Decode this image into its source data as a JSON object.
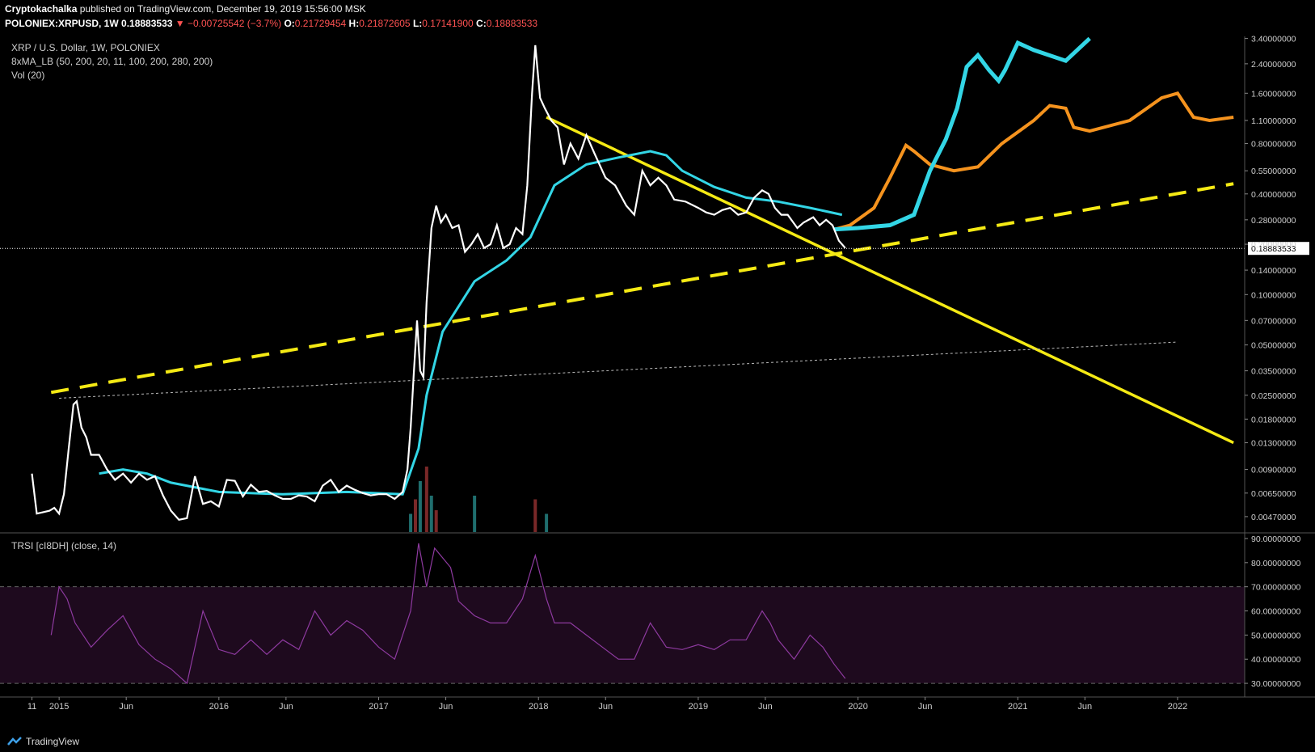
{
  "header": {
    "author": "Cryptokachalka",
    "published": "published on TradingView.com, December 19, 2019 15:56:00 MSK",
    "symbol": "POLONIEX:XRPUSD, 1W",
    "last": "0.18883533",
    "change": "▼ −0.00725542 (−3.7%)",
    "open_label": "O:",
    "open": "0.21729454",
    "high_label": "H:",
    "high": "0.21872605",
    "low_label": "L:",
    "low": "0.17141900",
    "close_label": "C:",
    "close": "0.18883533"
  },
  "legend": {
    "title": "XRP / U.S. Dollar, 1W, POLONIEX",
    "ma": "8xMA_LB (50, 200, 20, 11, 100, 200, 280, 200)",
    "vol": "Vol (20)",
    "rsi": "TRSI [cI8DH] (close, 14)"
  },
  "footer": {
    "brand": "TradingView"
  },
  "colors": {
    "price": "#ffffff",
    "ma_green": "#1e9e1e",
    "ma_cyan": "#33d6e6",
    "ma_purple": "#a02cc0",
    "ma_olive": "#6e9e40",
    "ma_orange": "#f5931e",
    "trend_yellow": "#f5ea14",
    "rsi": "#8e3aa0",
    "rsi_band": "#1e0a1e",
    "vol_up": "#1f6e6e",
    "vol_down": "#7a2828",
    "price_tag_bg": "#ffffff",
    "text": "#cfcfcf"
  },
  "chart_data": {
    "type": "line",
    "title": "XRP / U.S. Dollar, 1W, POLONIEX",
    "scale": "log",
    "y_ticks": [
      "3.40000000",
      "2.40000000",
      "1.60000000",
      "1.10000000",
      "0.80000000",
      "0.55000000",
      "0.40000000",
      "0.28000000",
      "0.20000000",
      "0.14000000",
      "0.10000000",
      "0.07000000",
      "0.05000000",
      "0.03500000",
      "0.02500000",
      "0.01800000",
      "0.01300000",
      "0.00900000",
      "0.00650000",
      "0.00470000"
    ],
    "y_tick_values": [
      3.4,
      2.4,
      1.6,
      1.1,
      0.8,
      0.55,
      0.4,
      0.28,
      0.2,
      0.14,
      0.1,
      0.07,
      0.05,
      0.035,
      0.025,
      0.018,
      0.013,
      0.009,
      0.0065,
      0.0047
    ],
    "last_price_label": "0.18883533",
    "last_price": 0.18883533,
    "x_ticks": [
      "11",
      "2015",
      "Jun",
      "2016",
      "Jun",
      "2017",
      "Jun",
      "2018",
      "Jun",
      "2019",
      "Jun",
      "2020",
      "Jun",
      "2021",
      "Jun",
      "2022"
    ],
    "x_tick_times": [
      2014.83,
      2015.0,
      2015.42,
      2016.0,
      2016.42,
      2017.0,
      2017.42,
      2018.0,
      2018.42,
      2019.0,
      2019.42,
      2020.0,
      2020.42,
      2021.0,
      2021.42,
      2022.0
    ],
    "price_series": [
      [
        2014.83,
        0.0085
      ],
      [
        2014.86,
        0.0049
      ],
      [
        2014.9,
        0.005
      ],
      [
        2014.94,
        0.0051
      ],
      [
        2014.97,
        0.0053
      ],
      [
        2015.0,
        0.0049
      ],
      [
        2015.03,
        0.0064
      ],
      [
        2015.06,
        0.012
      ],
      [
        2015.09,
        0.022
      ],
      [
        2015.11,
        0.023
      ],
      [
        2015.14,
        0.016
      ],
      [
        2015.17,
        0.014
      ],
      [
        2015.2,
        0.011
      ],
      [
        2015.25,
        0.011
      ],
      [
        2015.3,
        0.009
      ],
      [
        2015.35,
        0.0078
      ],
      [
        2015.4,
        0.0085
      ],
      [
        2015.45,
        0.0075
      ],
      [
        2015.5,
        0.0085
      ],
      [
        2015.55,
        0.0078
      ],
      [
        2015.6,
        0.0082
      ],
      [
        2015.65,
        0.0063
      ],
      [
        2015.7,
        0.0051
      ],
      [
        2015.75,
        0.0045
      ],
      [
        2015.8,
        0.0046
      ],
      [
        2015.85,
        0.0082
      ],
      [
        2015.9,
        0.0056
      ],
      [
        2015.95,
        0.0058
      ],
      [
        2016.0,
        0.0054
      ],
      [
        2016.05,
        0.0078
      ],
      [
        2016.1,
        0.0077
      ],
      [
        2016.15,
        0.0062
      ],
      [
        2016.2,
        0.0073
      ],
      [
        2016.25,
        0.0066
      ],
      [
        2016.3,
        0.0067
      ],
      [
        2016.35,
        0.0063
      ],
      [
        2016.4,
        0.006
      ],
      [
        2016.45,
        0.006
      ],
      [
        2016.5,
        0.0063
      ],
      [
        2016.55,
        0.0062
      ],
      [
        2016.6,
        0.0058
      ],
      [
        2016.65,
        0.0072
      ],
      [
        2016.7,
        0.0078
      ],
      [
        2016.75,
        0.0066
      ],
      [
        2016.8,
        0.0072
      ],
      [
        2016.85,
        0.0068
      ],
      [
        2016.9,
        0.0065
      ],
      [
        2016.95,
        0.0063
      ],
      [
        2017.0,
        0.0064
      ],
      [
        2017.05,
        0.0064
      ],
      [
        2017.1,
        0.006
      ],
      [
        2017.15,
        0.0066
      ],
      [
        2017.18,
        0.009
      ],
      [
        2017.2,
        0.016
      ],
      [
        2017.22,
        0.034
      ],
      [
        2017.24,
        0.07
      ],
      [
        2017.26,
        0.035
      ],
      [
        2017.28,
        0.032
      ],
      [
        2017.3,
        0.09
      ],
      [
        2017.33,
        0.25
      ],
      [
        2017.36,
        0.34
      ],
      [
        2017.39,
        0.27
      ],
      [
        2017.42,
        0.3
      ],
      [
        2017.46,
        0.25
      ],
      [
        2017.5,
        0.26
      ],
      [
        2017.54,
        0.18
      ],
      [
        2017.58,
        0.2
      ],
      [
        2017.62,
        0.23
      ],
      [
        2017.66,
        0.19
      ],
      [
        2017.7,
        0.2
      ],
      [
        2017.74,
        0.26
      ],
      [
        2017.78,
        0.19
      ],
      [
        2017.82,
        0.2
      ],
      [
        2017.86,
        0.25
      ],
      [
        2017.9,
        0.23
      ],
      [
        2017.93,
        0.45
      ],
      [
        2017.96,
        1.6
      ],
      [
        2017.98,
        3.1
      ],
      [
        2018.01,
        1.5
      ],
      [
        2018.04,
        1.3
      ],
      [
        2018.08,
        1.1
      ],
      [
        2018.12,
        1.0
      ],
      [
        2018.16,
        0.6
      ],
      [
        2018.2,
        0.8
      ],
      [
        2018.25,
        0.65
      ],
      [
        2018.3,
        0.9
      ],
      [
        2018.35,
        0.7
      ],
      [
        2018.42,
        0.5
      ],
      [
        2018.48,
        0.45
      ],
      [
        2018.55,
        0.34
      ],
      [
        2018.6,
        0.3
      ],
      [
        2018.65,
        0.55
      ],
      [
        2018.7,
        0.45
      ],
      [
        2018.75,
        0.5
      ],
      [
        2018.8,
        0.45
      ],
      [
        2018.85,
        0.37
      ],
      [
        2018.92,
        0.36
      ],
      [
        2019.0,
        0.33
      ],
      [
        2019.05,
        0.31
      ],
      [
        2019.1,
        0.3
      ],
      [
        2019.15,
        0.32
      ],
      [
        2019.2,
        0.33
      ],
      [
        2019.25,
        0.3
      ],
      [
        2019.3,
        0.31
      ],
      [
        2019.35,
        0.38
      ],
      [
        2019.4,
        0.42
      ],
      [
        2019.44,
        0.4
      ],
      [
        2019.48,
        0.33
      ],
      [
        2019.52,
        0.3
      ],
      [
        2019.56,
        0.3
      ],
      [
        2019.62,
        0.25
      ],
      [
        2019.66,
        0.27
      ],
      [
        2019.72,
        0.29
      ],
      [
        2019.76,
        0.26
      ],
      [
        2019.8,
        0.28
      ],
      [
        2019.84,
        0.26
      ],
      [
        2019.88,
        0.21
      ],
      [
        2019.92,
        0.19
      ]
    ],
    "ma_cyan_series": [
      [
        2015.25,
        0.0085
      ],
      [
        2015.4,
        0.009
      ],
      [
        2015.55,
        0.0085
      ],
      [
        2015.7,
        0.0075
      ],
      [
        2016.0,
        0.0066
      ],
      [
        2016.4,
        0.0064
      ],
      [
        2016.8,
        0.0066
      ],
      [
        2017.15,
        0.0064
      ],
      [
        2017.25,
        0.012
      ],
      [
        2017.3,
        0.025
      ],
      [
        2017.4,
        0.06
      ],
      [
        2017.6,
        0.12
      ],
      [
        2017.8,
        0.16
      ],
      [
        2017.95,
        0.22
      ],
      [
        2018.1,
        0.45
      ],
      [
        2018.3,
        0.6
      ],
      [
        2018.5,
        0.66
      ],
      [
        2018.7,
        0.72
      ],
      [
        2018.8,
        0.68
      ],
      [
        2018.9,
        0.55
      ],
      [
        2019.1,
        0.44
      ],
      [
        2019.3,
        0.38
      ],
      [
        2019.5,
        0.36
      ],
      [
        2019.7,
        0.33
      ],
      [
        2019.9,
        0.3
      ]
    ],
    "ma_orange_forecast": [
      [
        2019.85,
        0.245
      ],
      [
        2019.95,
        0.26
      ],
      [
        2020.1,
        0.33
      ],
      [
        2020.2,
        0.5
      ],
      [
        2020.3,
        0.78
      ],
      [
        2020.35,
        0.72
      ],
      [
        2020.45,
        0.6
      ],
      [
        2020.6,
        0.55
      ],
      [
        2020.75,
        0.58
      ],
      [
        2020.9,
        0.8
      ],
      [
        2021.1,
        1.1
      ],
      [
        2021.2,
        1.35
      ],
      [
        2021.3,
        1.3
      ],
      [
        2021.35,
        1.0
      ],
      [
        2021.45,
        0.95
      ],
      [
        2021.7,
        1.1
      ],
      [
        2021.9,
        1.5
      ],
      [
        2022.0,
        1.6
      ],
      [
        2022.1,
        1.15
      ],
      [
        2022.2,
        1.1
      ],
      [
        2022.35,
        1.15
      ]
    ],
    "ma_cyan_forecast": [
      [
        2019.85,
        0.245
      ],
      [
        2020.0,
        0.25
      ],
      [
        2020.2,
        0.26
      ],
      [
        2020.35,
        0.3
      ],
      [
        2020.45,
        0.55
      ],
      [
        2020.55,
        0.85
      ],
      [
        2020.62,
        1.3
      ],
      [
        2020.68,
        2.3
      ],
      [
        2020.75,
        2.7
      ],
      [
        2020.82,
        2.2
      ],
      [
        2020.88,
        1.9
      ],
      [
        2020.92,
        2.2
      ],
      [
        2021.0,
        3.2
      ],
      [
        2021.1,
        2.9
      ],
      [
        2021.3,
        2.5
      ],
      [
        2021.45,
        3.4
      ]
    ],
    "trendlines": [
      {
        "style": "dashed",
        "color": "yellow",
        "from": [
          2014.95,
          0.026
        ],
        "to": [
          2022.35,
          0.46
        ]
      },
      {
        "style": "solid",
        "color": "yellow",
        "from": [
          2018.05,
          1.15
        ],
        "to": [
          2022.35,
          0.013
        ]
      },
      {
        "style": "dotted",
        "color": "white",
        "from": [
          2015.0,
          0.024
        ],
        "to": [
          2022.0,
          0.052
        ]
      }
    ],
    "rsi": {
      "label": "TRSI [cI8DH] (close, 14)",
      "y_ticks": [
        "90.00000000",
        "80.00000000",
        "70.00000000",
        "60.00000000",
        "50.00000000",
        "40.00000000",
        "30.00000000"
      ],
      "y_tick_values": [
        90,
        80,
        70,
        60,
        50,
        40,
        30
      ],
      "band": [
        30,
        70
      ],
      "series": [
        [
          2014.95,
          50
        ],
        [
          2015.0,
          70
        ],
        [
          2015.05,
          65
        ],
        [
          2015.1,
          55
        ],
        [
          2015.2,
          45
        ],
        [
          2015.3,
          52
        ],
        [
          2015.4,
          58
        ],
        [
          2015.5,
          46
        ],
        [
          2015.6,
          40
        ],
        [
          2015.7,
          36
        ],
        [
          2015.8,
          30
        ],
        [
          2015.9,
          60
        ],
        [
          2016.0,
          44
        ],
        [
          2016.1,
          42
        ],
        [
          2016.2,
          48
        ],
        [
          2016.3,
          42
        ],
        [
          2016.4,
          48
        ],
        [
          2016.5,
          44
        ],
        [
          2016.6,
          60
        ],
        [
          2016.7,
          50
        ],
        [
          2016.8,
          56
        ],
        [
          2016.9,
          52
        ],
        [
          2017.0,
          45
        ],
        [
          2017.1,
          40
        ],
        [
          2017.2,
          60
        ],
        [
          2017.25,
          88
        ],
        [
          2017.3,
          70
        ],
        [
          2017.35,
          86
        ],
        [
          2017.45,
          78
        ],
        [
          2017.5,
          64
        ],
        [
          2017.6,
          58
        ],
        [
          2017.7,
          55
        ],
        [
          2017.8,
          55
        ],
        [
          2017.9,
          65
        ],
        [
          2017.98,
          83
        ],
        [
          2018.05,
          65
        ],
        [
          2018.1,
          55
        ],
        [
          2018.2,
          55
        ],
        [
          2018.3,
          50
        ],
        [
          2018.4,
          45
        ],
        [
          2018.5,
          40
        ],
        [
          2018.6,
          40
        ],
        [
          2018.7,
          55
        ],
        [
          2018.8,
          45
        ],
        [
          2018.9,
          44
        ],
        [
          2019.0,
          46
        ],
        [
          2019.1,
          44
        ],
        [
          2019.2,
          48
        ],
        [
          2019.3,
          48
        ],
        [
          2019.4,
          60
        ],
        [
          2019.45,
          55
        ],
        [
          2019.5,
          48
        ],
        [
          2019.6,
          40
        ],
        [
          2019.7,
          50
        ],
        [
          2019.78,
          45
        ],
        [
          2019.85,
          38
        ],
        [
          2019.92,
          32
        ]
      ]
    },
    "volume": [
      [
        2017.2,
        0.25
      ],
      [
        2017.23,
        0.45
      ],
      [
        2017.26,
        0.7
      ],
      [
        2017.3,
        0.9
      ],
      [
        2017.33,
        0.5
      ],
      [
        2017.36,
        0.3
      ],
      [
        2017.6,
        0.5
      ],
      [
        2017.98,
        0.45
      ],
      [
        2018.05,
        0.25
      ]
    ]
  }
}
